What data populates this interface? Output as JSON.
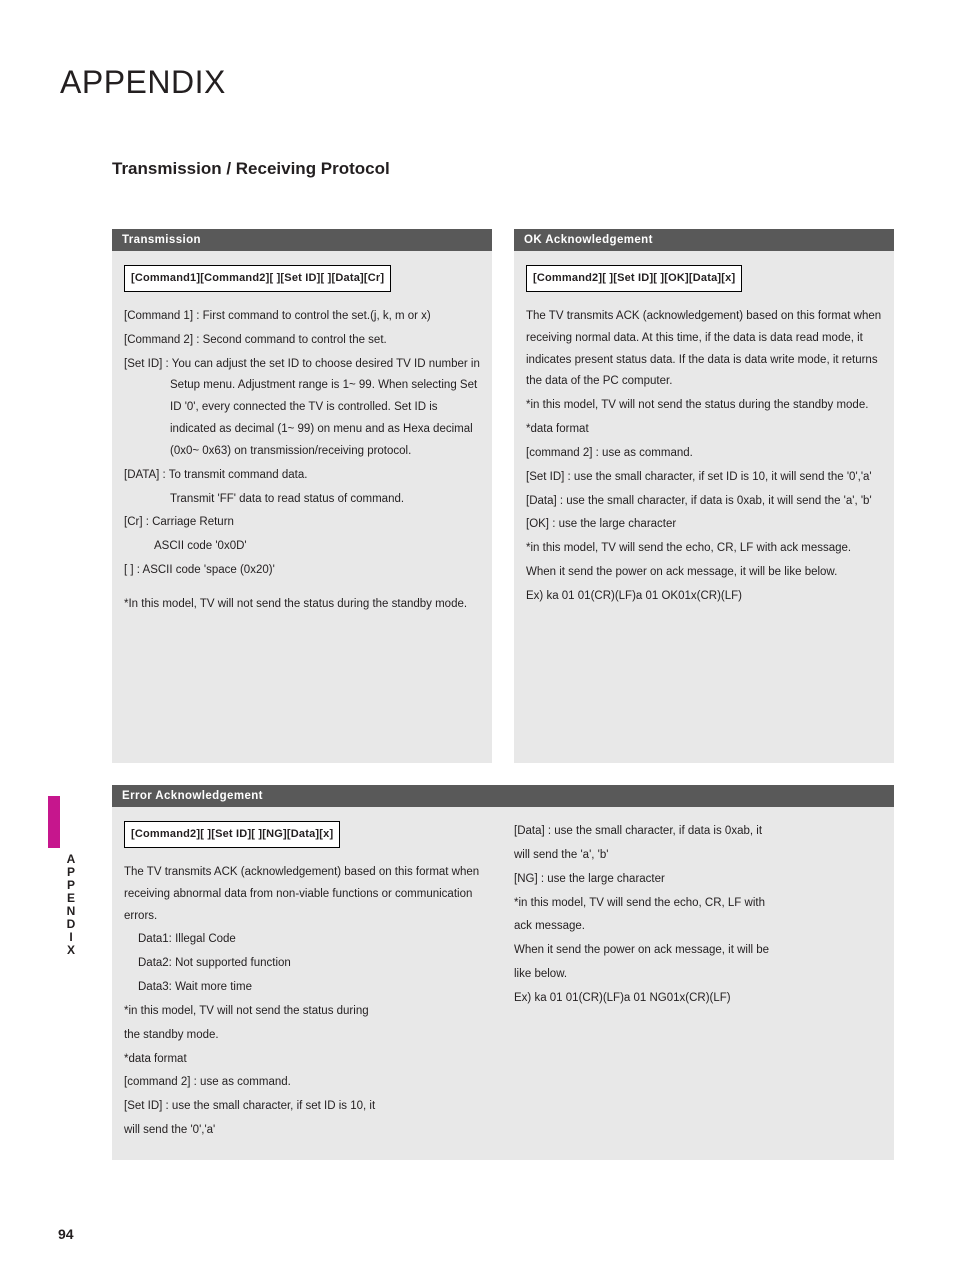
{
  "page_title": "APPENDIX",
  "sub_title": "Transmission / Receiving  Protocol",
  "side_label": "APPENDIX",
  "page_number": "94",
  "colors": {
    "accent": "#c6168d",
    "bar_bg": "#595959",
    "box_bg": "#e8e8e8",
    "text": "#231f20"
  },
  "transmission": {
    "bar": "Transmission",
    "cmd": "[Command1][Command2][  ][Set ID][  ][Data][Cr]",
    "l1": "[Command 1] : First command to control the set.(j, k, m or x)",
    "l2": "[Command 2] : Second command to control the set.",
    "l3": "[Set ID] : You can adjust the set ID to choose desired TV ID number in Setup menu. Adjustment range is 1~ 99. When selecting Set ID '0', every connected the TV is controlled. Set ID is indicated as decimal (1~ 99) on menu and as Hexa decimal (0x0~ 0x63) on transmission/receiving protocol.",
    "l4": "[DATA] : To transmit command data.",
    "l5": "Transmit 'FF' data to read status of command.",
    "l6": "[Cr] : Carriage Return",
    "l7": "ASCII code '0x0D'",
    "l8": "[   ] : ASCII code 'space (0x20)'",
    "l9": "*In this model, TV will not send the status during the standby mode."
  },
  "ok_ack": {
    "bar": "OK Acknowledgement",
    "cmd": "[Command2][  ][Set ID][  ][OK][Data][x]",
    "l1": "The TV transmits ACK (acknowledgement) based on this format when receiving normal data. At this time, if the data is data read mode, it indicates present status data. If the data is data write mode, it returns the data of the PC computer.",
    "l2": "*in this model, TV will not send the status during the standby mode.",
    "l3": "*data format",
    "l4": "[command 2] : use as command.",
    "l5": "[Set ID] : use the small character, if set ID is 10, it will send the '0','a'",
    "l6": "[Data] : use the small character, if data is 0xab, it will send the 'a', 'b'",
    "l7": "[OK] : use the large character",
    "l8": "*in this model, TV will send the echo, CR, LF with ack message.",
    "l9": "When it send the power on ack message, it will be like below.",
    "l10": "Ex) ka 01 01(CR)(LF)a 01 OK01x(CR)(LF)"
  },
  "err_ack": {
    "bar": "Error Acknowledgement",
    "cmd": "[Command2][  ][Set ID][  ][NG][Data][x]",
    "left": {
      "l1": "The TV transmits ACK (acknowledgement) based on this format when receiving abnormal data from non-viable functions or communication errors.",
      "l2": "Data1: Illegal Code",
      "l3": "Data2: Not supported function",
      "l4": "Data3: Wait more time",
      "l5": "*in this model, TV will not send the status during",
      "l6": "the standby mode.",
      "l7": "*data format",
      "l8": "[command 2] : use as command.",
      "l9": "[Set ID] : use the small character, if set ID is 10, it",
      "l10": "will send the '0','a'"
    },
    "right": {
      "l1": "[Data] : use the small character, if data is 0xab, it",
      "l2": "will send the 'a', 'b'",
      "l3": "[NG] : use the large character",
      "l4": "*in this model, TV will send the echo, CR, LF with",
      "l5": "ack message.",
      "l6": "When it send the power on ack message, it will be",
      "l7": "like below.",
      "l8": "Ex) ka 01 01(CR)(LF)a 01 NG01x(CR)(LF)"
    }
  }
}
